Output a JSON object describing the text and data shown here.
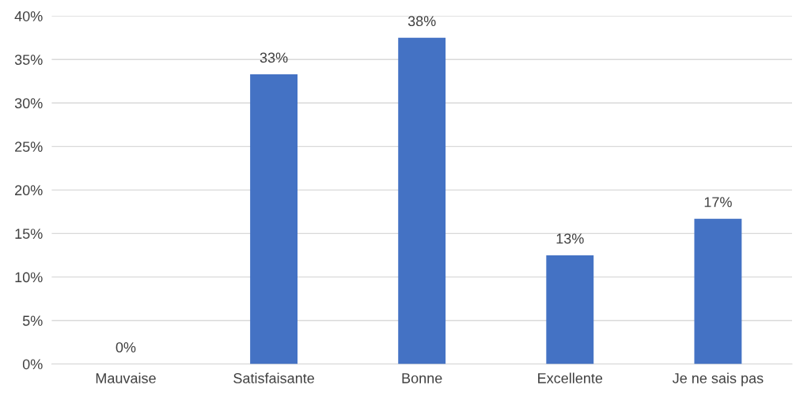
{
  "chart_data": {
    "type": "bar",
    "categories": [
      "Mauvaise",
      "Satisfaisante",
      "Bonne",
      "Excellente",
      "Je ne sais pas"
    ],
    "values": [
      0,
      33.3,
      37.5,
      12.5,
      16.7
    ],
    "value_labels": [
      "0%",
      "33%",
      "38%",
      "13%",
      "17%"
    ],
    "color": "#4472c4",
    "ylim": [
      0,
      40
    ],
    "yticks": [
      {
        "value": 0,
        "label": "0%"
      },
      {
        "value": 5,
        "label": "5%"
      },
      {
        "value": 10,
        "label": "10%"
      },
      {
        "value": 15,
        "label": "15%"
      },
      {
        "value": 20,
        "label": "20%"
      },
      {
        "value": 25,
        "label": "25%"
      },
      {
        "value": 30,
        "label": "30%"
      },
      {
        "value": 35,
        "label": "35%"
      },
      {
        "value": 40,
        "label": "40%"
      }
    ],
    "grid": "y",
    "legend": false
  }
}
